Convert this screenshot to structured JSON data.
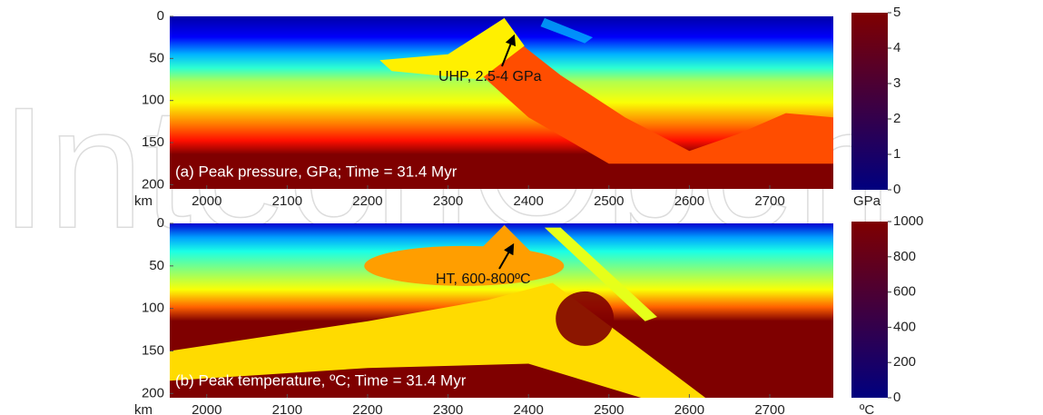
{
  "watermark": "IntechOpen",
  "chart_data": [
    {
      "type": "heatmap",
      "caption": "(a) Peak pressure, GPa; Time = 31.4 Myr",
      "annotation": "UHP, 2.5-4 GPa",
      "ylabel": "km",
      "xlim": [
        1954,
        2779
      ],
      "xticks": [
        2000,
        2100,
        2200,
        2300,
        2400,
        2500,
        2600,
        2700
      ],
      "ylim": [
        0,
        205
      ],
      "yticks": [
        0,
        50,
        100,
        150,
        200
      ],
      "colormap": [
        "#00007f",
        "#0000ff",
        "#0080ff",
        "#00ffff",
        "#80ff80",
        "#ffff00",
        "#ff8000",
        "#ff0000",
        "#7f0000"
      ],
      "colorbar": {
        "label": "GPa",
        "lim": [
          0,
          5
        ],
        "ticks": [
          0,
          1,
          2,
          3,
          4,
          5
        ]
      }
    },
    {
      "type": "heatmap",
      "caption": "(b) Peak temperature, ºC; Time = 31.4 Myr",
      "annotation": "HT, 600-800ºC",
      "ylabel": "km",
      "xlim": [
        1954,
        2779
      ],
      "xticks": [
        2000,
        2100,
        2200,
        2300,
        2400,
        2500,
        2600,
        2700
      ],
      "ylim": [
        0,
        205
      ],
      "yticks": [
        0,
        50,
        100,
        150,
        200
      ],
      "colormap": [
        "#00007f",
        "#0000ff",
        "#0080ff",
        "#00ffff",
        "#80ff80",
        "#ffff00",
        "#ff8000",
        "#ff0000",
        "#7f0000"
      ],
      "colorbar": {
        "label": "ºC",
        "lim": [
          0,
          1000
        ],
        "ticks": [
          0,
          200,
          400,
          600,
          800,
          1000
        ]
      }
    }
  ]
}
